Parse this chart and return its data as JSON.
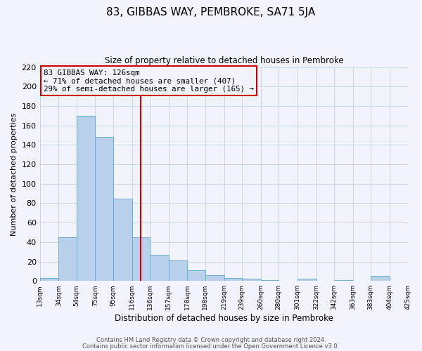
{
  "title": "83, GIBBAS WAY, PEMBROKE, SA71 5JA",
  "subtitle": "Size of property relative to detached houses in Pembroke",
  "xlabel": "Distribution of detached houses by size in Pembroke",
  "ylabel": "Number of detached properties",
  "bin_labels": [
    "13sqm",
    "34sqm",
    "54sqm",
    "75sqm",
    "95sqm",
    "116sqm",
    "136sqm",
    "157sqm",
    "178sqm",
    "198sqm",
    "219sqm",
    "239sqm",
    "260sqm",
    "280sqm",
    "301sqm",
    "322sqm",
    "342sqm",
    "363sqm",
    "383sqm",
    "404sqm",
    "425sqm"
  ],
  "bin_edges": [
    13,
    34,
    54,
    75,
    95,
    116,
    136,
    157,
    178,
    198,
    219,
    239,
    260,
    280,
    301,
    322,
    342,
    363,
    383,
    404,
    425
  ],
  "bar_heights_all": [
    3,
    45,
    170,
    148,
    85,
    45,
    27,
    21,
    11,
    6,
    3,
    2,
    1,
    0,
    2,
    0,
    1,
    0,
    5,
    0
  ],
  "property_line_x": 126,
  "annotation_text": "83 GIBBAS WAY: 126sqm\n← 71% of detached houses are smaller (407)\n29% of semi-detached houses are larger (165) →",
  "bar_color": "#b8d0ea",
  "bar_edge_color": "#6aaed6",
  "line_color": "#cc0000",
  "annotation_box_color": "#cc0000",
  "grid_color": "#c8d8e8",
  "background_color": "#f0f4fa",
  "ylim": [
    0,
    220
  ],
  "yticks": [
    0,
    20,
    40,
    60,
    80,
    100,
    120,
    140,
    160,
    180,
    200,
    220
  ],
  "footer_line1": "Contains HM Land Registry data © Crown copyright and database right 2024.",
  "footer_line2": "Contains public sector information licensed under the Open Government Licence v3.0."
}
